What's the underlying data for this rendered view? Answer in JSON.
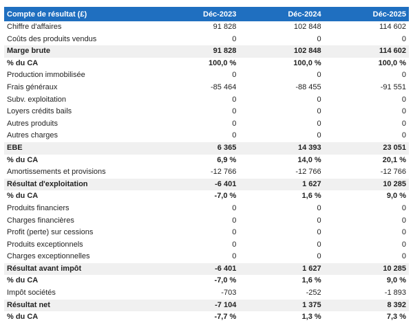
{
  "table": {
    "header": [
      "Compte de résultat (£)",
      "Déc-2023",
      "Déc-2024",
      "Déc-2025"
    ],
    "rows": [
      [
        "Chiffre d'affaires",
        "91 828",
        "102 848",
        "114 602"
      ],
      [
        "Coûts des produits vendus",
        "0",
        "0",
        "0"
      ],
      [
        "Marge brute",
        "91 828",
        "102 848",
        "114 602"
      ],
      [
        "% du CA",
        "100,0 %",
        "100,0 %",
        "100,0 %"
      ],
      [
        "Production immobilisée",
        "0",
        "0",
        "0"
      ],
      [
        "Frais généraux",
        "-85 464",
        "-88 455",
        "-91 551"
      ],
      [
        "Subv. exploitation",
        "0",
        "0",
        "0"
      ],
      [
        "Loyers crédits bails",
        "0",
        "0",
        "0"
      ],
      [
        "Autres produits",
        "0",
        "0",
        "0"
      ],
      [
        "Autres charges",
        "0",
        "0",
        "0"
      ],
      [
        "EBE",
        "6 365",
        "14 393",
        "23 051"
      ],
      [
        "% du CA",
        "6,9 %",
        "14,0 %",
        "20,1 %"
      ],
      [
        "Amortissements et provisions",
        "-12 766",
        "-12 766",
        "-12 766"
      ],
      [
        "Résultat d'exploitation",
        "-6 401",
        "1 627",
        "10 285"
      ],
      [
        "% du CA",
        "-7,0 %",
        "1,6 %",
        "9,0 %"
      ],
      [
        "Produits financiers",
        "0",
        "0",
        "0"
      ],
      [
        "Charges financières",
        "0",
        "0",
        "0"
      ],
      [
        "Profit (perte) sur cessions",
        "0",
        "0",
        "0"
      ],
      [
        "Produits exceptionnels",
        "0",
        "0",
        "0"
      ],
      [
        "Charges exceptionnelles",
        "0",
        "0",
        "0"
      ],
      [
        "Résultat avant impôt",
        "-6 401",
        "1 627",
        "10 285"
      ],
      [
        "% du CA",
        "-7,0 %",
        "1,6 %",
        "9,0 %"
      ],
      [
        "Impôt sociétés",
        "-703",
        "-252",
        "-1 893"
      ],
      [
        "Résultat net",
        "-7 104",
        "1 375",
        "8 392"
      ],
      [
        "% du CA",
        "-7,7 %",
        "1,3 %",
        "7,3 %"
      ]
    ]
  }
}
